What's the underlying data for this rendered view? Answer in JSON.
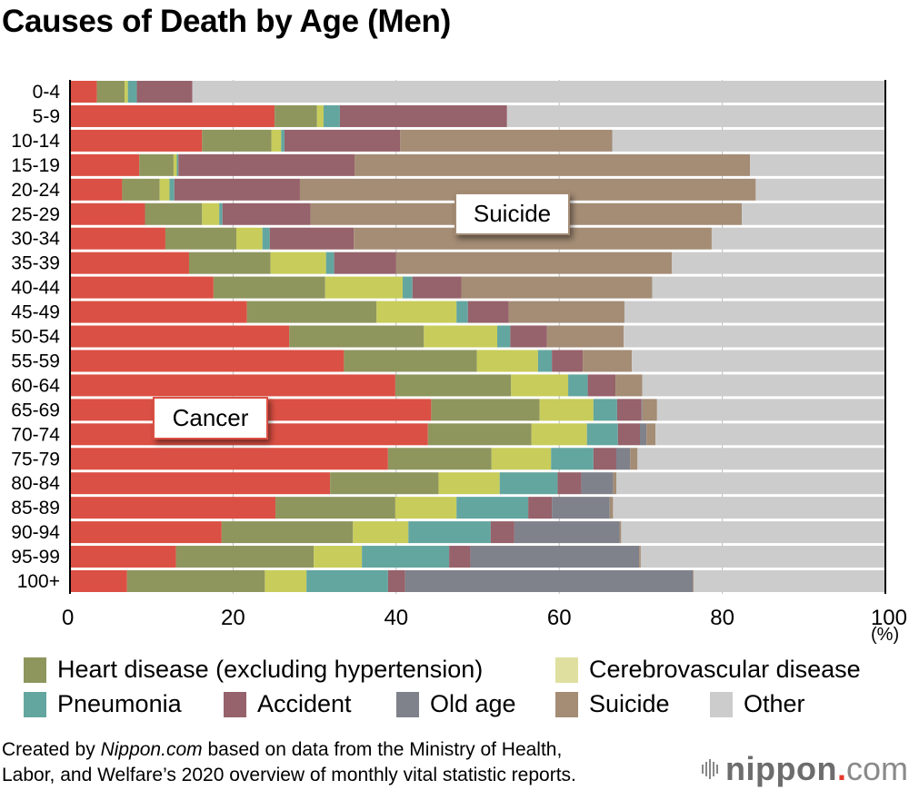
{
  "title": "Causes of Death by Age (Men)",
  "unit_label": "(%)",
  "callouts": {
    "suicide": "Suicide",
    "cancer": "Cancer"
  },
  "legend": [
    {
      "name": "Heart disease (excluding hypertension)",
      "color": "#8e965e"
    },
    {
      "name": "Cerebrovascular disease",
      "color": "#dfe0a0"
    },
    {
      "name": "Pneumonia",
      "color": "#63a6a0"
    },
    {
      "name": "Accident",
      "color": "#96626b"
    },
    {
      "name": "Old age",
      "color": "#7f818b"
    },
    {
      "name": "Suicide",
      "color": "#a48c75"
    },
    {
      "name": "Other",
      "color": "#cccccc"
    }
  ],
  "footnote": {
    "prefix": "Created by ",
    "brand": "Nippon.com",
    "line1_rest": " based on data from the Ministry of Health,",
    "line2": "Labor, and Welfare’s 2020 overview of monthly vital statistic reports."
  },
  "logo": {
    "name": "nippon",
    "dot": ".",
    "tld": "com"
  },
  "chart_data": {
    "type": "bar",
    "orientation": "horizontal",
    "stacked": true,
    "title": "Causes of Death by Age (Men)",
    "xlabel": "(%)",
    "ylabel": "",
    "xlim": [
      0,
      100
    ],
    "xticks": [
      0,
      20,
      40,
      60,
      80,
      100
    ],
    "grid": true,
    "legend_position": "bottom",
    "categories": [
      "0-4",
      "5-9",
      "10-14",
      "15-19",
      "20-24",
      "25-29",
      "30-34",
      "35-39",
      "40-44",
      "45-49",
      "50-54",
      "55-59",
      "60-64",
      "65-69",
      "70-74",
      "75-79",
      "80-84",
      "85-89",
      "90-94",
      "95-99",
      "100+"
    ],
    "series": [
      {
        "name": "Cancer",
        "color": "#db5044",
        "values": [
          3.3,
          25.1,
          16.2,
          8.5,
          6.4,
          9.2,
          11.7,
          14.6,
          17.6,
          21.7,
          26.9,
          33.6,
          39.9,
          44.3,
          43.9,
          39.0,
          31.9,
          25.2,
          18.6,
          13.0,
          7.0
        ]
      },
      {
        "name": "Heart disease (excluding hypertension)",
        "color": "#8e965e",
        "values": [
          3.4,
          5.2,
          8.5,
          4.2,
          4.6,
          7.0,
          8.7,
          10.0,
          13.7,
          15.9,
          16.5,
          16.3,
          14.2,
          13.3,
          12.7,
          12.7,
          13.3,
          14.7,
          16.1,
          16.9,
          16.9
        ]
      },
      {
        "name": "Cerebrovascular disease",
        "color": "#c8cc5a",
        "values": [
          0.4,
          0.8,
          1.2,
          0.4,
          1.2,
          2.1,
          3.2,
          6.8,
          9.5,
          9.8,
          9.0,
          7.5,
          7.0,
          6.6,
          6.8,
          7.3,
          7.5,
          7.5,
          6.8,
          5.9,
          5.1
        ]
      },
      {
        "name": "Pneumonia",
        "color": "#63a6a0",
        "values": [
          1.1,
          2.0,
          0.4,
          0.2,
          0.6,
          0.4,
          0.9,
          1.0,
          1.2,
          1.4,
          1.6,
          1.7,
          2.4,
          2.9,
          3.8,
          5.2,
          7.1,
          8.8,
          10.1,
          10.7,
          10.0
        ]
      },
      {
        "name": "Accident",
        "color": "#96626b",
        "values": [
          6.8,
          20.5,
          14.2,
          21.6,
          15.4,
          10.8,
          10.3,
          7.6,
          6.0,
          5.0,
          4.5,
          3.8,
          3.4,
          3.0,
          2.7,
          2.8,
          2.9,
          2.9,
          2.9,
          2.6,
          2.1
        ]
      },
      {
        "name": "Old age",
        "color": "#7f818b",
        "values": [
          0,
          0,
          0,
          0,
          0,
          0,
          0,
          0,
          0,
          0,
          0,
          0,
          0,
          0.1,
          0.8,
          1.7,
          3.9,
          7.1,
          12.9,
          20.7,
          35.3
        ]
      },
      {
        "name": "Suicide",
        "color": "#a48c75",
        "values": [
          0,
          0,
          26.0,
          48.5,
          55.9,
          52.9,
          43.9,
          33.8,
          23.4,
          14.2,
          9.4,
          6.0,
          3.3,
          1.8,
          1.1,
          0.9,
          0.4,
          0.4,
          0.2,
          0.2,
          0.1
        ]
      },
      {
        "name": "Other",
        "color": "#cccccc",
        "values": [
          85.0,
          46.4,
          33.5,
          16.6,
          15.9,
          17.6,
          21.3,
          26.2,
          28.6,
          32.0,
          32.1,
          31.1,
          29.8,
          28.0,
          28.2,
          30.4,
          33.0,
          33.4,
          32.4,
          30.0,
          23.5
        ]
      }
    ],
    "annotations": [
      {
        "text": "Suicide",
        "series": "Suicide",
        "category": "25-29"
      },
      {
        "text": "Cancer",
        "series": "Cancer",
        "category": "65-69"
      }
    ]
  }
}
